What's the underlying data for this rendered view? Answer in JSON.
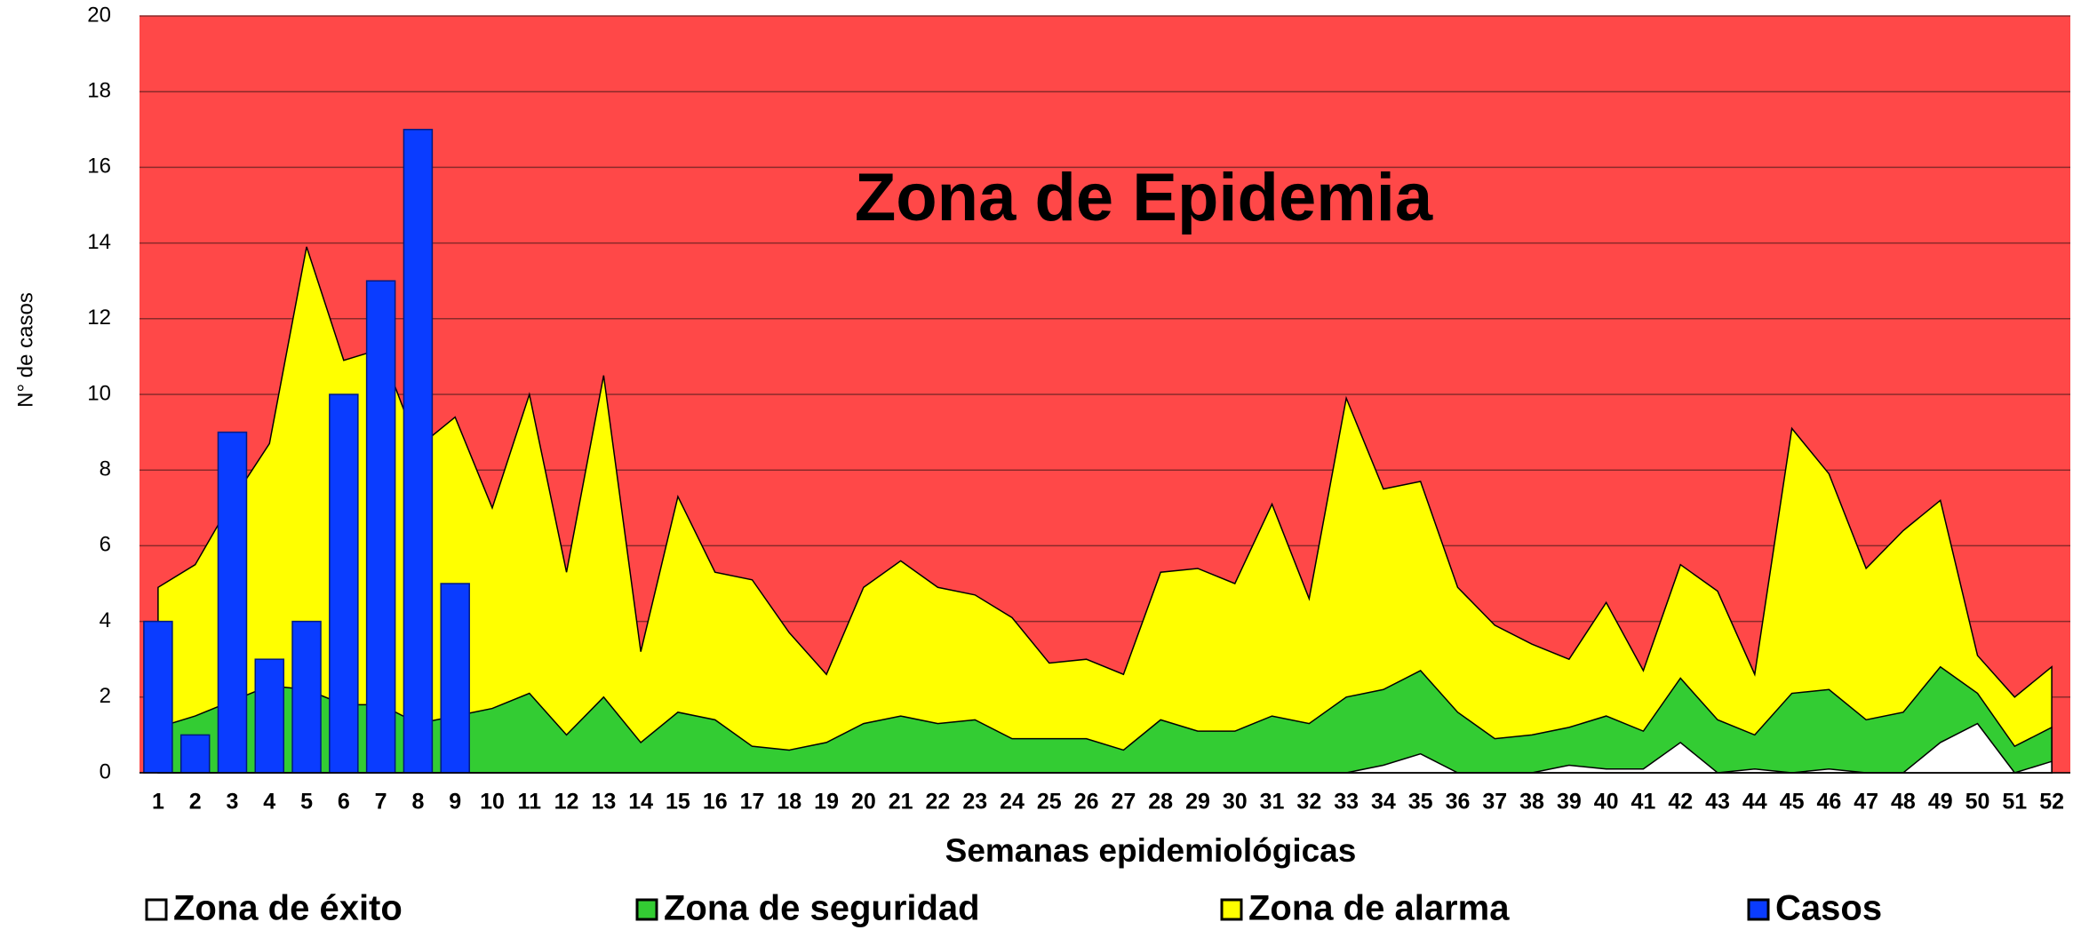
{
  "chart_data": {
    "type": "area",
    "annotation": "Zona de Epidemia",
    "x_label": "Semanas epidemiológicas",
    "y_label": "N° de casos",
    "plot_color": "#ff4848",
    "grid": true,
    "legend": "bottom",
    "categories": [
      "1",
      "2",
      "3",
      "4",
      "5",
      "6",
      "7",
      "8",
      "9",
      "10",
      "11",
      "12",
      "13",
      "14",
      "15",
      "16",
      "17",
      "18",
      "19",
      "20",
      "21",
      "22",
      "23",
      "24",
      "25",
      "26",
      "27",
      "28",
      "29",
      "30",
      "31",
      "32",
      "33",
      "34",
      "35",
      "36",
      "37",
      "38",
      "39",
      "40",
      "41",
      "42",
      "43",
      "44",
      "45",
      "46",
      "47",
      "48",
      "49",
      "50",
      "51",
      "52"
    ],
    "ylim": [
      0,
      20
    ],
    "yticks": [
      0,
      2,
      4,
      6,
      8,
      10,
      12,
      14,
      16,
      18,
      20
    ],
    "series": [
      {
        "name": "Zona de éxito",
        "type": "area",
        "color": "#ffffff",
        "values": [
          0,
          0,
          0,
          0,
          0,
          0,
          0,
          0,
          0,
          0,
          0,
          0,
          0,
          0,
          0,
          0,
          0,
          0,
          0,
          0,
          0,
          0,
          0,
          0,
          0,
          0,
          0,
          0,
          0,
          0,
          0,
          0,
          0,
          0.2,
          0.5,
          0,
          0,
          0,
          0.2,
          0.1,
          0.1,
          0.8,
          0,
          0.1,
          0,
          0.1,
          0,
          0,
          0.8,
          1.3,
          0,
          0.3
        ]
      },
      {
        "name": "Zona de seguridad",
        "type": "area",
        "color": "#33cc33",
        "values": [
          1.2,
          1.5,
          1.9,
          2.3,
          2.2,
          1.8,
          1.8,
          1.3,
          1.5,
          1.7,
          2.1,
          1.0,
          2.0,
          0.8,
          1.6,
          1.4,
          0.7,
          0.6,
          0.8,
          1.3,
          1.5,
          1.3,
          1.4,
          0.9,
          0.9,
          0.9,
          0.6,
          1.4,
          1.1,
          1.1,
          1.5,
          1.3,
          2.0,
          2.2,
          2.7,
          1.6,
          0.9,
          1.0,
          1.2,
          1.5,
          1.1,
          2.5,
          1.4,
          1.0,
          2.1,
          2.2,
          1.4,
          1.6,
          2.8,
          2.1,
          0.7,
          1.2
        ]
      },
      {
        "name": "Zona de alarma",
        "type": "area",
        "color": "#ffff00",
        "values": [
          4.9,
          5.5,
          7.2,
          8.7,
          13.9,
          10.9,
          11.2,
          8.6,
          9.4,
          7.0,
          10.0,
          5.3,
          10.5,
          3.2,
          7.3,
          5.3,
          5.1,
          3.7,
          2.6,
          4.9,
          5.6,
          4.9,
          4.7,
          4.1,
          2.9,
          3.0,
          2.6,
          5.3,
          5.4,
          5.0,
          7.1,
          4.6,
          9.9,
          7.5,
          7.7,
          4.9,
          3.9,
          3.4,
          3.0,
          4.5,
          2.7,
          5.5,
          4.8,
          2.6,
          9.1,
          7.9,
          5.4,
          6.4,
          7.2,
          3.1,
          2.0,
          2.8
        ]
      },
      {
        "name": "Casos",
        "type": "bar",
        "color": "#0a3cff",
        "values": [
          4,
          1,
          9,
          3,
          4,
          10,
          13,
          17,
          5,
          null,
          null,
          null,
          null,
          null,
          null,
          null,
          null,
          null,
          null,
          null,
          null,
          null,
          null,
          null,
          null,
          null,
          null,
          null,
          null,
          null,
          null,
          null,
          null,
          null,
          null,
          null,
          null,
          null,
          null,
          null,
          null,
          null,
          null,
          null,
          null,
          null,
          null,
          null,
          null,
          null,
          null,
          null
        ]
      }
    ]
  }
}
